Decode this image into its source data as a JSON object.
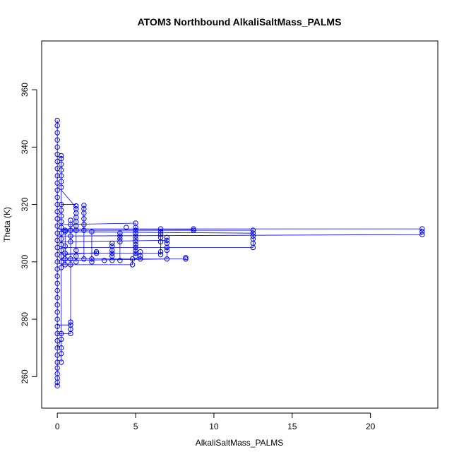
{
  "chart_data": {
    "type": "scatter",
    "title": "ATOM3 Northbound AlkaliSaltMass_PALMS",
    "xlabel": "AlkaliSaltMass_PALMS",
    "ylabel": "Theta (K)",
    "xlim": [
      -1.0,
      24.3
    ],
    "ylim": [
      249.0,
      377.0
    ],
    "xticks": [
      0,
      5,
      10,
      15,
      20
    ],
    "yticks": [
      260,
      280,
      300,
      320,
      340,
      360
    ],
    "grid": false,
    "legend": "none",
    "series": [
      {
        "color": "#0000ff",
        "marker": "circle-open",
        "line": true,
        "points": [
          [
            0.0,
            256.8
          ],
          [
            0.0,
            258.0
          ],
          [
            0.0,
            259.5
          ],
          [
            0.0,
            261.0
          ],
          [
            0.0,
            263.0
          ],
          [
            0.0,
            265.0
          ],
          [
            0.0,
            267.5
          ],
          [
            0.0,
            270.0
          ],
          [
            0.0,
            272.5
          ],
          [
            0.0,
            275.0
          ],
          [
            0.0,
            277.5
          ],
          [
            0.0,
            280.0
          ],
          [
            0.0,
            282.5
          ],
          [
            0.0,
            285.0
          ],
          [
            0.0,
            287.5
          ],
          [
            0.0,
            290.0
          ],
          [
            0.0,
            292.5
          ],
          [
            0.0,
            295.0
          ],
          [
            0.0,
            297.5
          ],
          [
            0.0,
            300.0
          ],
          [
            0.0,
            302.5
          ],
          [
            0.0,
            305.0
          ],
          [
            0.0,
            307.5
          ],
          [
            0.0,
            310.0
          ],
          [
            0.0,
            312.5
          ],
          [
            0.0,
            315.0
          ],
          [
            0.0,
            317.5
          ],
          [
            0.0,
            320.0
          ],
          [
            0.0,
            322.5
          ],
          [
            0.0,
            325.0
          ],
          [
            0.0,
            327.5
          ],
          [
            0.0,
            330.0
          ],
          [
            0.0,
            332.5
          ],
          [
            0.0,
            335.0
          ],
          [
            0.0,
            337.5
          ],
          [
            0.0,
            340.0
          ],
          [
            0.0,
            342.5
          ],
          [
            0.0,
            345.0
          ],
          [
            0.0,
            347.5
          ],
          [
            0.0,
            349.3
          ],
          [
            0.25,
            265.0
          ],
          [
            0.25,
            268.0
          ],
          [
            0.25,
            270.0
          ],
          [
            0.25,
            273.0
          ],
          [
            0.25,
            275.0
          ],
          [
            0.25,
            298.0
          ],
          [
            0.25,
            300.0
          ],
          [
            0.25,
            302.0
          ],
          [
            0.25,
            304.0
          ],
          [
            0.25,
            306.0
          ],
          [
            0.25,
            308.0
          ],
          [
            0.25,
            310.0
          ],
          [
            0.25,
            312.0
          ],
          [
            0.25,
            314.0
          ],
          [
            0.25,
            316.0
          ],
          [
            0.25,
            318.0
          ],
          [
            0.25,
            320.0
          ],
          [
            0.25,
            326.0
          ],
          [
            0.25,
            328.0
          ],
          [
            0.25,
            330.0
          ],
          [
            0.25,
            332.0
          ],
          [
            0.25,
            334.0
          ],
          [
            0.25,
            336.0
          ],
          [
            0.25,
            337.0
          ],
          [
            0.5,
            299.0
          ],
          [
            0.5,
            301.0
          ],
          [
            0.5,
            303.0
          ],
          [
            0.5,
            305.5
          ],
          [
            0.5,
            310.5
          ],
          [
            0.5,
            311.0
          ],
          [
            0.85,
            275.0
          ],
          [
            0.85,
            276.5
          ],
          [
            0.85,
            278.0
          ],
          [
            0.85,
            279.0
          ],
          [
            0.85,
            299.0
          ],
          [
            0.85,
            301.0
          ],
          [
            0.85,
            307.0
          ],
          [
            0.85,
            309.0
          ],
          [
            0.85,
            311.0
          ],
          [
            0.85,
            313.0
          ],
          [
            0.85,
            314.5
          ],
          [
            1.2,
            300.0
          ],
          [
            1.2,
            302.0
          ],
          [
            1.2,
            304.0
          ],
          [
            1.2,
            311.0
          ],
          [
            1.2,
            312.5
          ],
          [
            1.2,
            314.0
          ],
          [
            1.2,
            315.5
          ],
          [
            1.2,
            317.0
          ],
          [
            1.2,
            318.5
          ],
          [
            1.2,
            319.5
          ],
          [
            1.7,
            301.0
          ],
          [
            1.7,
            311.0
          ],
          [
            1.7,
            313.0
          ],
          [
            1.7,
            315.0
          ],
          [
            1.7,
            317.0
          ],
          [
            1.7,
            318.5
          ],
          [
            1.7,
            319.7
          ],
          [
            2.2,
            300.0
          ],
          [
            2.2,
            301.0
          ],
          [
            2.2,
            310.5
          ],
          [
            2.5,
            303.0
          ],
          [
            2.5,
            303.5
          ],
          [
            3.0,
            300.5
          ],
          [
            3.5,
            300.5
          ],
          [
            3.5,
            302.0
          ],
          [
            3.5,
            303.0
          ],
          [
            3.5,
            304.0
          ],
          [
            3.5,
            305.5
          ],
          [
            3.5,
            306.5
          ],
          [
            4.0,
            300.5
          ],
          [
            4.0,
            307.0
          ],
          [
            4.0,
            308.0
          ],
          [
            4.0,
            309.0
          ],
          [
            4.0,
            310.0
          ],
          [
            4.4,
            312.0
          ],
          [
            4.8,
            299.0
          ],
          [
            4.8,
            301.0
          ],
          [
            5.0,
            302.0
          ],
          [
            5.0,
            303.0
          ],
          [
            5.0,
            304.0
          ],
          [
            5.0,
            305.0
          ],
          [
            5.0,
            306.0
          ],
          [
            5.0,
            307.0
          ],
          [
            5.0,
            308.0
          ],
          [
            5.0,
            309.0
          ],
          [
            5.0,
            310.0
          ],
          [
            5.0,
            311.0
          ],
          [
            5.0,
            312.0
          ],
          [
            5.0,
            313.5
          ],
          [
            5.3,
            301.0
          ],
          [
            5.3,
            302.0
          ],
          [
            5.3,
            303.5
          ],
          [
            6.6,
            302.5
          ],
          [
            6.6,
            303.5
          ],
          [
            6.6,
            307.0
          ],
          [
            6.6,
            308.5
          ],
          [
            6.6,
            309.5
          ],
          [
            6.6,
            310.5
          ],
          [
            6.6,
            311.5
          ],
          [
            7.0,
            301.0
          ],
          [
            7.0,
            304.0
          ],
          [
            7.0,
            305.0
          ],
          [
            7.0,
            306.5
          ],
          [
            7.0,
            307.5
          ],
          [
            7.0,
            308.5
          ],
          [
            8.2,
            301.0
          ],
          [
            8.2,
            301.5
          ],
          [
            8.7,
            311.0
          ],
          [
            8.7,
            311.5
          ],
          [
            12.5,
            305.0
          ],
          [
            12.5,
            306.5
          ],
          [
            12.5,
            308.0
          ],
          [
            12.5,
            309.0
          ],
          [
            12.5,
            310.0
          ],
          [
            12.5,
            311.0
          ],
          [
            23.3,
            309.5
          ],
          [
            23.3,
            310.5
          ],
          [
            23.3,
            311.5
          ]
        ],
        "segments": [
          [
            [
              0.0,
              311.5
            ],
            [
              23.3,
              311.5
            ]
          ],
          [
            [
              0.0,
              309.0
            ],
            [
              23.3,
              309.5
            ]
          ],
          [
            [
              0.25,
              311.0
            ],
            [
              12.5,
              311.0
            ]
          ],
          [
            [
              0.25,
              310.5
            ],
            [
              12.5,
              310.0
            ]
          ],
          [
            [
              0.25,
              305.0
            ],
            [
              12.5,
              305.0
            ]
          ],
          [
            [
              0.5,
              311.0
            ],
            [
              8.7,
              311.2
            ]
          ],
          [
            [
              0.25,
              313.0
            ],
            [
              5.0,
              313.5
            ]
          ],
          [
            [
              0.25,
              301.0
            ],
            [
              8.2,
              301.0
            ]
          ],
          [
            [
              0.25,
              300.5
            ],
            [
              7.0,
              301.0
            ]
          ],
          [
            [
              0.25,
              303.0
            ],
            [
              6.6,
              303.0
            ]
          ],
          [
            [
              0.25,
              299.0
            ],
            [
              4.8,
              299.0
            ]
          ],
          [
            [
              0.25,
              307.0
            ],
            [
              7.0,
              307.5
            ]
          ],
          [
            [
              0.25,
              320.0
            ],
            [
              1.2,
              320.0
            ]
          ],
          [
            [
              0.25,
              325.0
            ],
            [
              1.2,
              319.0
            ]
          ],
          [
            [
              0.5,
              302.5
            ],
            [
              2.5,
              303.2
            ]
          ],
          [
            [
              0.0,
              278.0
            ],
            [
              0.85,
              278.0
            ]
          ],
          [
            [
              0.0,
              275.0
            ],
            [
              0.85,
              275.0
            ]
          ],
          [
            [
              0.0,
              270.0
            ],
            [
              0.25,
              273.0
            ]
          ]
        ]
      }
    ]
  }
}
